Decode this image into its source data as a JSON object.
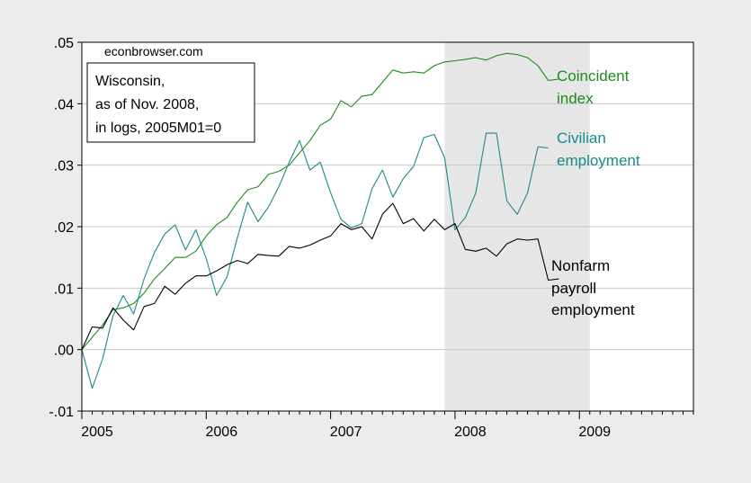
{
  "chart_data": {
    "type": "line",
    "title": "",
    "xlabel": "",
    "ylabel": "",
    "watermark": "econbrowser.com",
    "annotation_box": [
      "Wisconsin,",
      "as of Nov. 2008,",
      "in logs, 2005M01=0"
    ],
    "xlim": [
      2005.0,
      2009.9167
    ],
    "ylim": [
      -0.01,
      0.05
    ],
    "x_ticks": [
      {
        "value": 2005,
        "label": "2005"
      },
      {
        "value": 2006,
        "label": "2006"
      },
      {
        "value": 2007,
        "label": "2007"
      },
      {
        "value": 2008,
        "label": "2008"
      },
      {
        "value": 2009,
        "label": "2009"
      }
    ],
    "y_ticks": [
      {
        "value": -0.01,
        "label": "-.01"
      },
      {
        "value": 0.0,
        "label": ".00"
      },
      {
        "value": 0.01,
        "label": ".01"
      },
      {
        "value": 0.02,
        "label": ".02"
      },
      {
        "value": 0.03,
        "label": ".03"
      },
      {
        "value": 0.04,
        "label": ".04"
      },
      {
        "value": 0.05,
        "label": ".05"
      }
    ],
    "grid": true,
    "shaded_region": {
      "x_start": 2007.9167,
      "x_end": 2009.0833,
      "color": "#e6e6e6"
    },
    "colors": {
      "background": "#ececec",
      "plot_area": "#ffffff",
      "grid": "#c8c8c8",
      "axis": "#000000"
    },
    "series": [
      {
        "name": "Coincident index",
        "label_lines": [
          "Coincident",
          "index"
        ],
        "color": "#1a8c1a",
        "x_start": 2005.0,
        "x_step": 0.083333,
        "values": [
          0.0,
          0.002,
          0.004,
          0.0065,
          0.0068,
          0.0075,
          0.0092,
          0.0115,
          0.0132,
          0.015,
          0.015,
          0.016,
          0.0185,
          0.0203,
          0.0215,
          0.024,
          0.026,
          0.0265,
          0.0285,
          0.029,
          0.03,
          0.032,
          0.034,
          0.0365,
          0.0375,
          0.0405,
          0.0395,
          0.0412,
          0.0415,
          0.0435,
          0.0455,
          0.045,
          0.0452,
          0.045,
          0.0462,
          0.0468,
          0.047,
          0.0472,
          0.0475,
          0.0471,
          0.0478,
          0.0482,
          0.048,
          0.0475,
          0.0462,
          0.0438,
          0.044
        ]
      },
      {
        "name": "Civilian employment",
        "label_lines": [
          "Civilian",
          "employment"
        ],
        "color": "#1a8a8a",
        "x_start": 2005.0,
        "x_step": 0.083333,
        "values": [
          0.0,
          -0.0063,
          -0.0015,
          0.0055,
          0.0088,
          0.0058,
          0.0115,
          0.0158,
          0.0188,
          0.0203,
          0.0162,
          0.0195,
          0.0148,
          0.0088,
          0.0118,
          0.0182,
          0.024,
          0.0208,
          0.0232,
          0.0265,
          0.0305,
          0.034,
          0.0292,
          0.0305,
          0.0255,
          0.0212,
          0.0198,
          0.0205,
          0.0262,
          0.0292,
          0.0248,
          0.0278,
          0.0298,
          0.0345,
          0.035,
          0.0312,
          0.0195,
          0.0215,
          0.0255,
          0.0352,
          0.0352,
          0.0242,
          0.022,
          0.0255,
          0.033,
          0.0328
        ]
      },
      {
        "name": "Nonfarm payroll employment",
        "label_lines": [
          "Nonfarm",
          "payroll",
          "employment"
        ],
        "color": "#000000",
        "x_start": 2005.0,
        "x_step": 0.083333,
        "values": [
          0.0,
          0.0037,
          0.0035,
          0.0068,
          0.0048,
          0.0032,
          0.007,
          0.0075,
          0.0103,
          0.009,
          0.0108,
          0.012,
          0.012,
          0.0128,
          0.0138,
          0.0145,
          0.014,
          0.0155,
          0.0153,
          0.0152,
          0.0168,
          0.0165,
          0.017,
          0.0178,
          0.0185,
          0.0205,
          0.0195,
          0.02,
          0.018,
          0.022,
          0.0238,
          0.0205,
          0.0213,
          0.0193,
          0.0212,
          0.0195,
          0.0205,
          0.0163,
          0.016,
          0.0165,
          0.0152,
          0.0172,
          0.018,
          0.0178,
          0.018,
          0.0113,
          0.0115
        ]
      }
    ]
  }
}
